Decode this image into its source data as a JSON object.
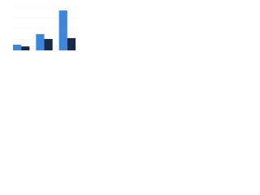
{
  "chart_data": {
    "type": "bar",
    "categories": [
      null,
      null,
      null
    ],
    "series": [
      {
        "color": "#3d86de",
        "values": [
          13,
          37,
          91
        ]
      },
      {
        "color": "#172a48",
        "values": [
          9,
          26,
          28
        ]
      }
    ],
    "ylim": [
      0,
      100
    ],
    "yticks": [
      0,
      25,
      50,
      75,
      100
    ],
    "grid": true
  }
}
